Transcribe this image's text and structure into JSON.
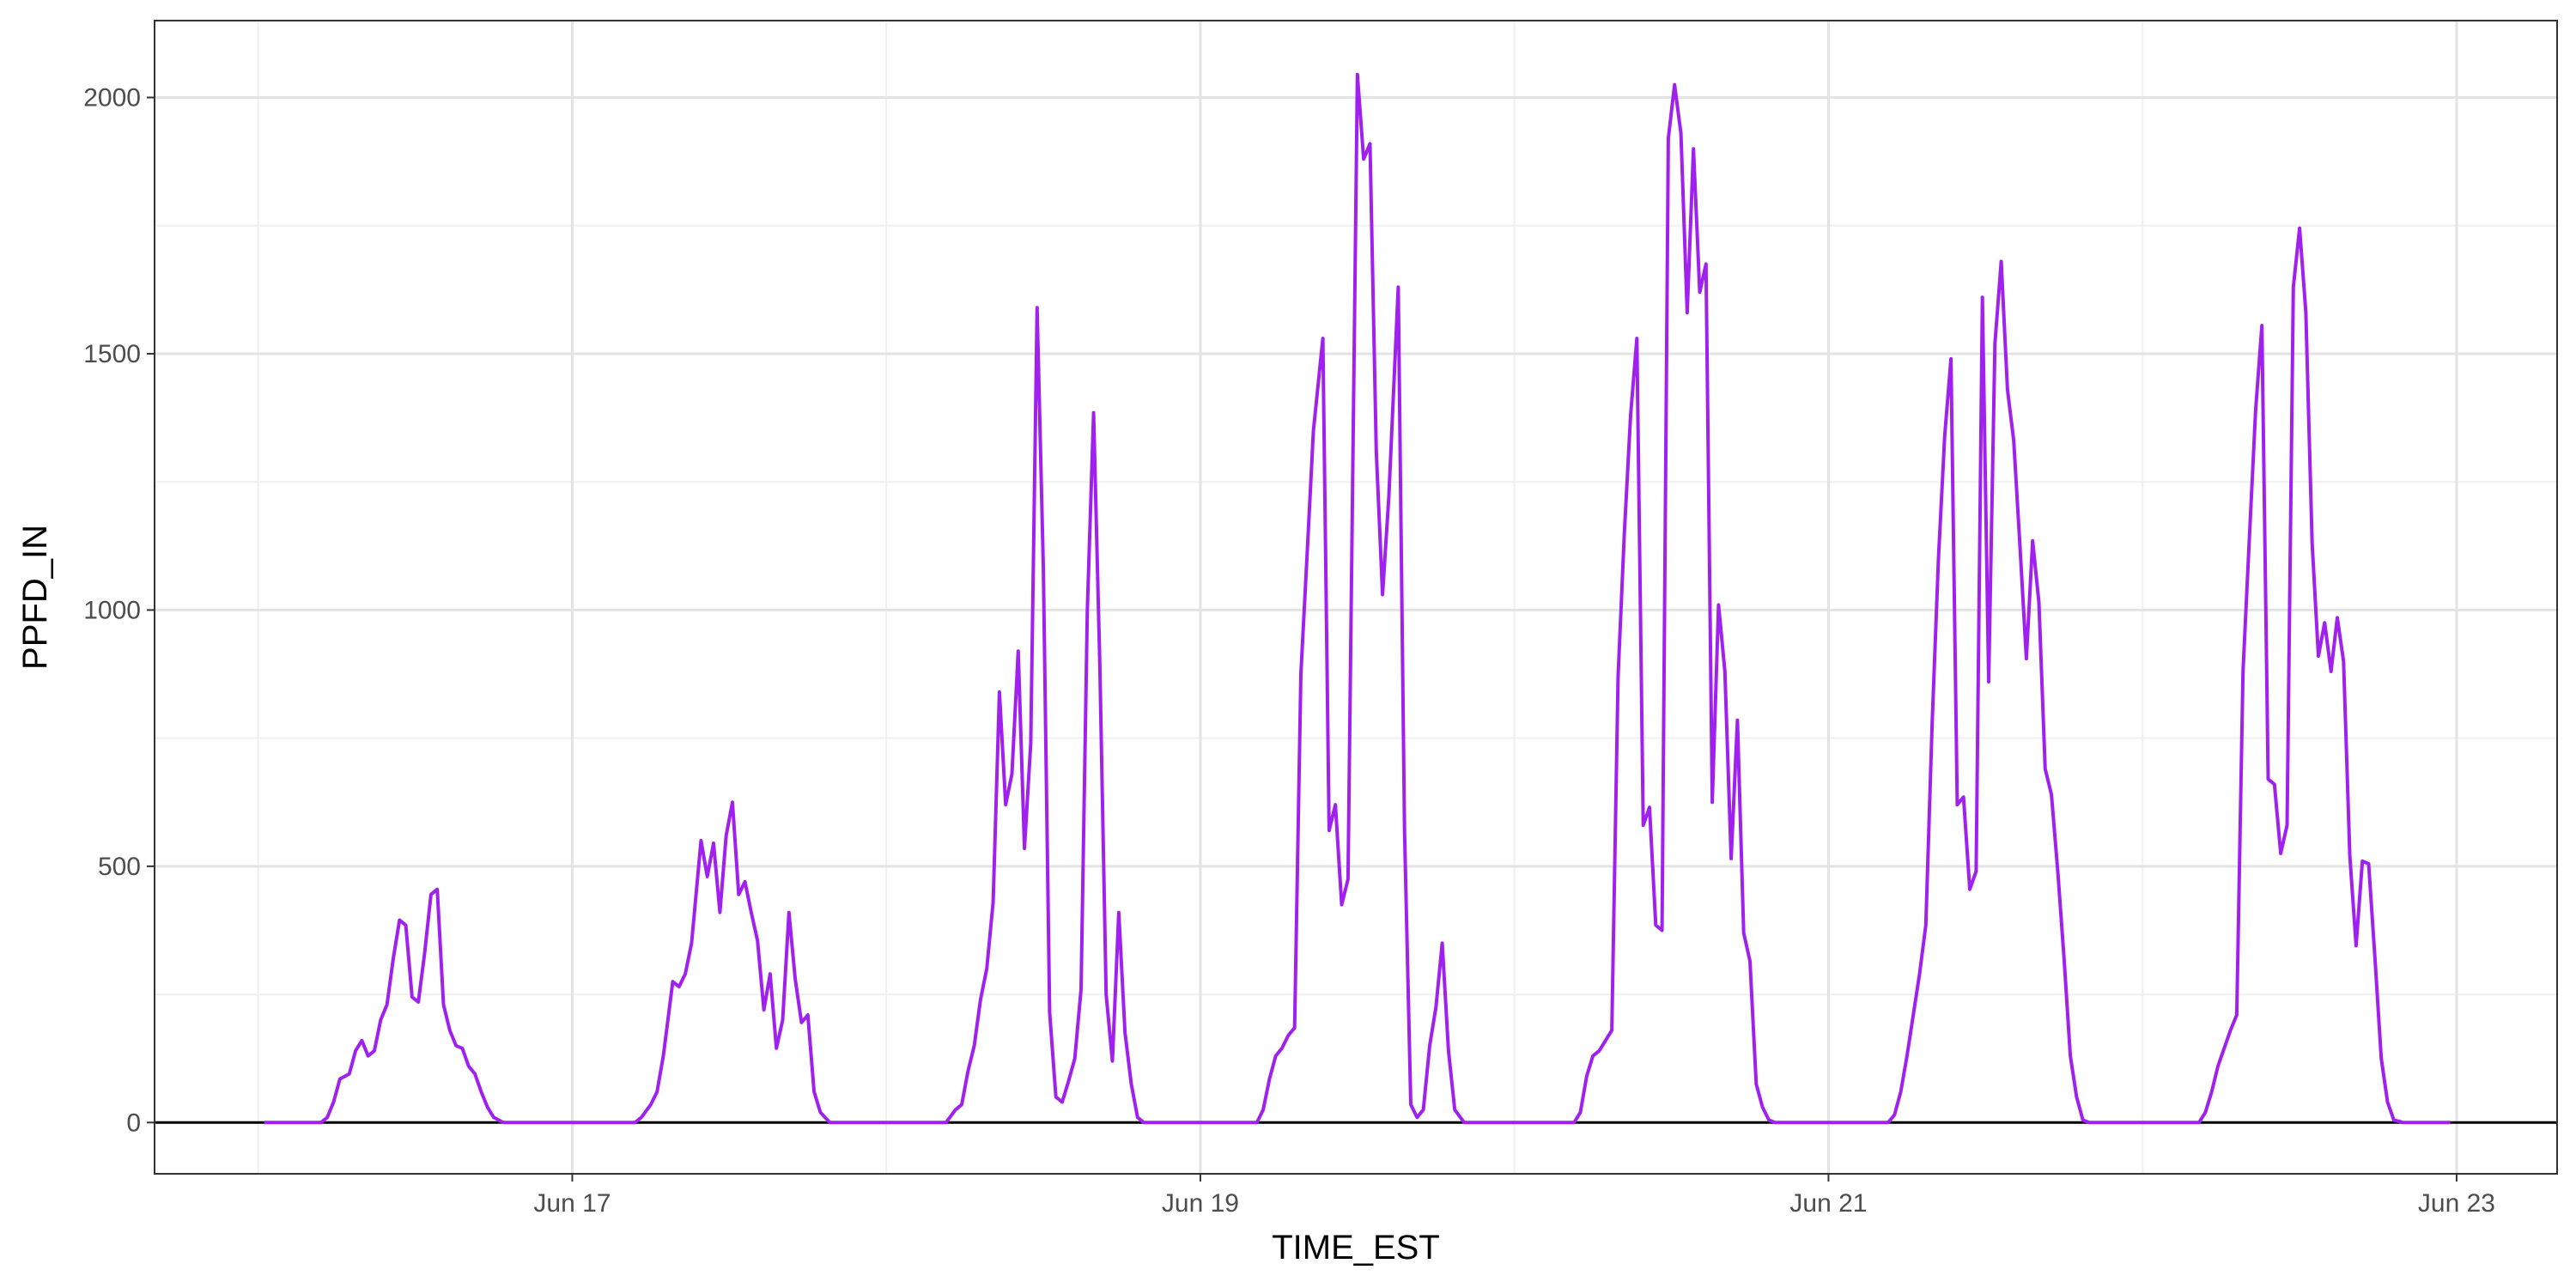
{
  "chart_data": {
    "type": "line",
    "title": "",
    "xlabel": "TIME_EST",
    "ylabel": "PPFD_IN",
    "x_unit": "days, June (day-of-month)",
    "xlim": [
      15.67,
      23.32
    ],
    "ylim": [
      -100,
      2150
    ],
    "y_ticks": [
      0,
      500,
      1000,
      1500,
      2000
    ],
    "x_ticks": [
      {
        "value": 17,
        "label": "Jun 17"
      },
      {
        "value": 19,
        "label": "Jun 19"
      },
      {
        "value": 21,
        "label": "Jun 21"
      },
      {
        "value": 23,
        "label": "Jun 23"
      }
    ],
    "x_minor_ticks": [
      16,
      18,
      20,
      22
    ],
    "y_minor_ticks": [
      250,
      750,
      1250,
      1750
    ],
    "grid": true,
    "reference_line_y": 0,
    "series": [
      {
        "name": "",
        "color": "#a020f0",
        "points": [
          [
            16.02,
            0
          ],
          [
            16.2,
            0
          ],
          [
            16.22,
            10
          ],
          [
            16.24,
            40
          ],
          [
            16.26,
            85
          ],
          [
            16.29,
            95
          ],
          [
            16.31,
            140
          ],
          [
            16.33,
            160
          ],
          [
            16.35,
            130
          ],
          [
            16.37,
            140
          ],
          [
            16.39,
            200
          ],
          [
            16.41,
            230
          ],
          [
            16.43,
            320
          ],
          [
            16.45,
            395
          ],
          [
            16.47,
            385
          ],
          [
            16.49,
            245
          ],
          [
            16.51,
            235
          ],
          [
            16.53,
            330
          ],
          [
            16.55,
            445
          ],
          [
            16.57,
            455
          ],
          [
            16.59,
            230
          ],
          [
            16.61,
            180
          ],
          [
            16.63,
            150
          ],
          [
            16.65,
            145
          ],
          [
            16.67,
            110
          ],
          [
            16.69,
            95
          ],
          [
            16.71,
            60
          ],
          [
            16.73,
            30
          ],
          [
            16.75,
            10
          ],
          [
            16.78,
            0
          ],
          [
            17.2,
            0
          ],
          [
            17.22,
            10
          ],
          [
            17.25,
            35
          ],
          [
            17.27,
            60
          ],
          [
            17.29,
            130
          ],
          [
            17.32,
            275
          ],
          [
            17.34,
            265
          ],
          [
            17.36,
            290
          ],
          [
            17.38,
            350
          ],
          [
            17.41,
            550
          ],
          [
            17.43,
            480
          ],
          [
            17.45,
            545
          ],
          [
            17.47,
            410
          ],
          [
            17.49,
            560
          ],
          [
            17.51,
            625
          ],
          [
            17.53,
            445
          ],
          [
            17.55,
            470
          ],
          [
            17.57,
            410
          ],
          [
            17.59,
            355
          ],
          [
            17.61,
            220
          ],
          [
            17.63,
            290
          ],
          [
            17.65,
            145
          ],
          [
            17.67,
            200
          ],
          [
            17.69,
            410
          ],
          [
            17.71,
            280
          ],
          [
            17.73,
            195
          ],
          [
            17.75,
            210
          ],
          [
            17.77,
            60
          ],
          [
            17.79,
            20
          ],
          [
            17.82,
            0
          ],
          [
            18.19,
            0
          ],
          [
            18.22,
            25
          ],
          [
            18.24,
            35
          ],
          [
            18.26,
            100
          ],
          [
            18.28,
            150
          ],
          [
            18.3,
            240
          ],
          [
            18.32,
            300
          ],
          [
            18.34,
            430
          ],
          [
            18.36,
            840
          ],
          [
            18.38,
            620
          ],
          [
            18.4,
            680
          ],
          [
            18.42,
            920
          ],
          [
            18.44,
            535
          ],
          [
            18.46,
            740
          ],
          [
            18.48,
            1590
          ],
          [
            18.5,
            1080
          ],
          [
            18.52,
            215
          ],
          [
            18.54,
            50
          ],
          [
            18.56,
            40
          ],
          [
            18.58,
            80
          ],
          [
            18.6,
            125
          ],
          [
            18.62,
            260
          ],
          [
            18.64,
            1000
          ],
          [
            18.66,
            1385
          ],
          [
            18.68,
            890
          ],
          [
            18.7,
            250
          ],
          [
            18.72,
            120
          ],
          [
            18.74,
            410
          ],
          [
            18.76,
            175
          ],
          [
            18.78,
            75
          ],
          [
            18.8,
            10
          ],
          [
            18.82,
            0
          ],
          [
            19.18,
            0
          ],
          [
            19.2,
            25
          ],
          [
            19.22,
            85
          ],
          [
            19.24,
            130
          ],
          [
            19.26,
            145
          ],
          [
            19.28,
            170
          ],
          [
            19.3,
            185
          ],
          [
            19.32,
            875
          ],
          [
            19.34,
            1110
          ],
          [
            19.36,
            1350
          ],
          [
            19.39,
            1530
          ],
          [
            19.41,
            570
          ],
          [
            19.43,
            620
          ],
          [
            19.45,
            425
          ],
          [
            19.47,
            475
          ],
          [
            19.5,
            2045
          ],
          [
            19.52,
            1880
          ],
          [
            19.54,
            1910
          ],
          [
            19.56,
            1310
          ],
          [
            19.58,
            1030
          ],
          [
            19.6,
            1220
          ],
          [
            19.63,
            1630
          ],
          [
            19.65,
            570
          ],
          [
            19.67,
            35
          ],
          [
            19.69,
            10
          ],
          [
            19.71,
            25
          ],
          [
            19.73,
            150
          ],
          [
            19.75,
            225
          ],
          [
            19.77,
            350
          ],
          [
            19.79,
            140
          ],
          [
            19.81,
            25
          ],
          [
            19.84,
            0
          ],
          [
            20.19,
            0
          ],
          [
            20.21,
            20
          ],
          [
            20.23,
            90
          ],
          [
            20.25,
            130
          ],
          [
            20.27,
            140
          ],
          [
            20.29,
            160
          ],
          [
            20.31,
            180
          ],
          [
            20.33,
            870
          ],
          [
            20.35,
            1150
          ],
          [
            20.37,
            1380
          ],
          [
            20.39,
            1530
          ],
          [
            20.41,
            580
          ],
          [
            20.43,
            615
          ],
          [
            20.45,
            385
          ],
          [
            20.47,
            375
          ],
          [
            20.49,
            1920
          ],
          [
            20.51,
            2025
          ],
          [
            20.53,
            1930
          ],
          [
            20.55,
            1580
          ],
          [
            20.57,
            1900
          ],
          [
            20.59,
            1620
          ],
          [
            20.61,
            1675
          ],
          [
            20.63,
            625
          ],
          [
            20.65,
            1010
          ],
          [
            20.67,
            880
          ],
          [
            20.69,
            515
          ],
          [
            20.71,
            785
          ],
          [
            20.73,
            370
          ],
          [
            20.75,
            315
          ],
          [
            20.77,
            75
          ],
          [
            20.79,
            30
          ],
          [
            20.81,
            5
          ],
          [
            20.83,
            0
          ],
          [
            21.19,
            0
          ],
          [
            21.21,
            15
          ],
          [
            21.23,
            60
          ],
          [
            21.25,
            130
          ],
          [
            21.27,
            210
          ],
          [
            21.29,
            290
          ],
          [
            21.31,
            385
          ],
          [
            21.33,
            780
          ],
          [
            21.35,
            1100
          ],
          [
            21.37,
            1340
          ],
          [
            21.39,
            1490
          ],
          [
            21.41,
            620
          ],
          [
            21.43,
            635
          ],
          [
            21.45,
            455
          ],
          [
            21.47,
            490
          ],
          [
            21.49,
            1610
          ],
          [
            21.51,
            860
          ],
          [
            21.53,
            1520
          ],
          [
            21.55,
            1680
          ],
          [
            21.57,
            1430
          ],
          [
            21.59,
            1330
          ],
          [
            21.61,
            1120
          ],
          [
            21.63,
            905
          ],
          [
            21.65,
            1135
          ],
          [
            21.67,
            1015
          ],
          [
            21.69,
            690
          ],
          [
            21.71,
            640
          ],
          [
            21.73,
            490
          ],
          [
            21.75,
            320
          ],
          [
            21.77,
            130
          ],
          [
            21.79,
            50
          ],
          [
            21.81,
            5
          ],
          [
            21.83,
            0
          ],
          [
            22.18,
            0
          ],
          [
            22.2,
            20
          ],
          [
            22.22,
            60
          ],
          [
            22.24,
            110
          ],
          [
            22.26,
            145
          ],
          [
            22.28,
            180
          ],
          [
            22.3,
            210
          ],
          [
            22.32,
            880
          ],
          [
            22.34,
            1140
          ],
          [
            22.36,
            1390
          ],
          [
            22.38,
            1555
          ],
          [
            22.4,
            670
          ],
          [
            22.42,
            660
          ],
          [
            22.44,
            525
          ],
          [
            22.46,
            580
          ],
          [
            22.48,
            1630
          ],
          [
            22.5,
            1745
          ],
          [
            22.52,
            1580
          ],
          [
            22.54,
            1130
          ],
          [
            22.56,
            910
          ],
          [
            22.58,
            975
          ],
          [
            22.6,
            880
          ],
          [
            22.62,
            985
          ],
          [
            22.64,
            900
          ],
          [
            22.66,
            520
          ],
          [
            22.68,
            345
          ],
          [
            22.7,
            510
          ],
          [
            22.72,
            505
          ],
          [
            22.74,
            320
          ],
          [
            22.76,
            125
          ],
          [
            22.78,
            40
          ],
          [
            22.8,
            5
          ],
          [
            22.83,
            0
          ],
          [
            22.98,
            0
          ]
        ]
      }
    ]
  }
}
